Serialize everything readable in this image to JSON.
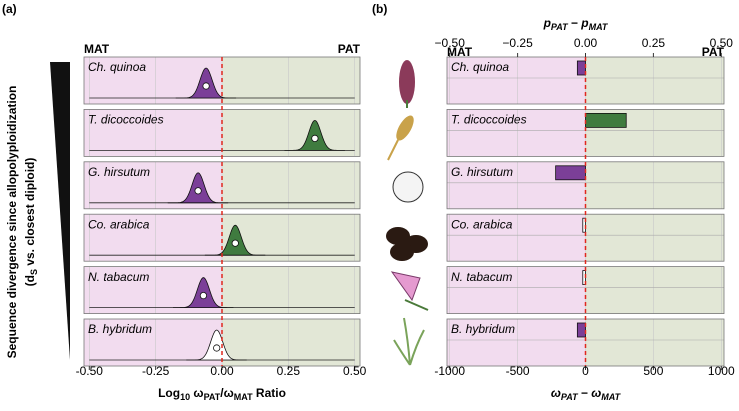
{
  "chart_data": [
    {
      "type": "density",
      "title": "(a)",
      "left_label": "MAT",
      "right_label": "PAT",
      "ylabel": [
        "Sequence divergence since allopolyploidization",
        "(d",
        "S",
        " vs. closest diploid)"
      ],
      "xlabel": [
        "Log",
        "10",
        " ω",
        "PAT",
        "/ω",
        "MAT",
        " Ratio"
      ],
      "categories": [
        "Ch. quinoa",
        "T. dicoccoides",
        "G. hirsutum",
        "Co. arabica",
        "N. tabacum",
        "B. hybridum"
      ],
      "values": [
        -0.06,
        0.35,
        -0.09,
        0.05,
        -0.07,
        -0.02
      ],
      "colors": [
        "#7b3f98",
        "#3f7b3f",
        "#7b3f98",
        "#3f7b3f",
        "#7b3f98",
        "#ffffff"
      ],
      "xlim": [
        -0.52,
        0.52
      ],
      "xticks": [
        {
          "value": -0.5,
          "label": "-0.50"
        },
        {
          "value": -0.25,
          "label": "-0.25"
        },
        {
          "value": 0,
          "label": "0.00"
        },
        {
          "value": 0.25,
          "label": "0.25"
        },
        {
          "value": 0.5,
          "label": "0.50"
        }
      ],
      "grid": true
    },
    {
      "type": "bar",
      "title": "(b)",
      "left_label": "MAT",
      "right_label": "PAT",
      "xlabel": [
        "p",
        "PAT",
        " − p",
        "MAT"
      ],
      "x2label": [
        "ω",
        "PAT",
        " − ω",
        "MAT"
      ],
      "categories": [
        "Ch. quinoa",
        "T. dicoccoides",
        "G. hirsutum",
        "Co. arabica",
        "N. tabacum",
        "B. hybridum"
      ],
      "values": [
        -0.03,
        0.15,
        -0.11,
        -0.01,
        -0.01,
        -0.03
      ],
      "colors": [
        "#7b3f98",
        "#3f7b3f",
        "#7b3f98",
        "#ffffff",
        "#ffffff",
        "#7b3f98"
      ],
      "xlim": [
        -0.51,
        0.51
      ],
      "xticks": [
        {
          "value": -0.5,
          "label": "−0.50"
        },
        {
          "value": -0.25,
          "label": "−0.25"
        },
        {
          "value": 0,
          "label": "0.00"
        },
        {
          "value": 0.25,
          "label": "0.25"
        },
        {
          "value": 0.5,
          "label": "0.50"
        }
      ],
      "x2lim": [
        -1020,
        1020
      ],
      "x2ticks": [
        -1000,
        -500,
        0,
        500,
        1000
      ],
      "grid": true
    }
  ]
}
